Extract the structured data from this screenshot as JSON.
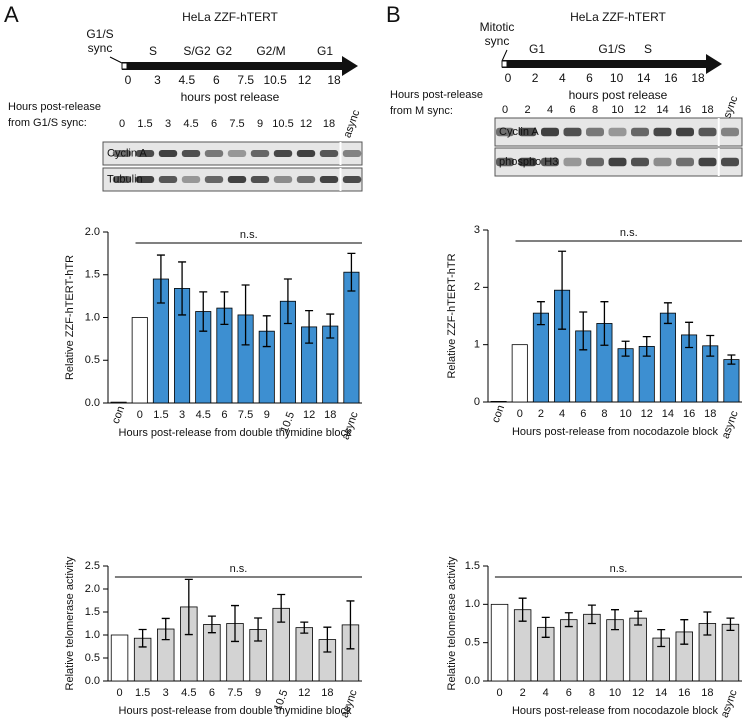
{
  "panels": [
    "A",
    "B"
  ],
  "timelines": [
    {
      "title": "HeLa ZZF-hTERT",
      "sync": [
        "G1/S",
        "sync"
      ],
      "phases": [
        "S",
        "S/G2",
        "G2",
        "G2/M",
        "G1"
      ],
      "ticks": [
        0,
        3,
        4.5,
        6,
        7.5,
        10.5,
        12,
        18
      ],
      "axis_label": "hours post release"
    },
    {
      "title": "HeLa ZZF-hTERT",
      "sync": [
        "Mitotic",
        "sync"
      ],
      "phases": [
        "G1",
        "G1/S",
        "S"
      ],
      "ticks": [
        0,
        2,
        4,
        6,
        10,
        14,
        16,
        18
      ],
      "axis_label": "hours post release"
    }
  ],
  "blots": [
    {
      "header": [
        "Hours post-release",
        "from G1/S sync:"
      ],
      "lanes": [
        "0",
        "1.5",
        "3",
        "4.5",
        "6",
        "7.5",
        "9",
        "10.5",
        "12",
        "18",
        "async"
      ],
      "rows": [
        "Cyclin A",
        "Tubulin"
      ]
    },
    {
      "header": [
        "Hours post-release",
        "from M sync:"
      ],
      "lanes": [
        "0",
        "2",
        "4",
        "6",
        "8",
        "10",
        "12",
        "14",
        "16",
        "18",
        "async"
      ],
      "rows": [
        "Cyclin A",
        "phospho H3"
      ]
    }
  ],
  "chart_data": [
    {
      "type": "bar",
      "xlabel": "Hours post-release from double thymidine block",
      "ylabel": "Relative ZZF-hTERT-hTR",
      "annotation": "n.s.",
      "categories": [
        "con",
        "0",
        "1.5",
        "3",
        "4.5",
        "6",
        "7.5",
        "9",
        "10.5",
        "12",
        "18",
        "async"
      ],
      "values": [
        0.01,
        1.0,
        1.45,
        1.34,
        1.07,
        1.11,
        1.03,
        0.84,
        1.19,
        0.89,
        0.9,
        1.53
      ],
      "errors": [
        null,
        null,
        0.28,
        0.31,
        0.23,
        0.19,
        0.35,
        0.18,
        0.26,
        0.19,
        0.14,
        0.22
      ],
      "colors": [
        "#ffffff",
        "#ffffff",
        "#3d8fd1",
        "#3d8fd1",
        "#3d8fd1",
        "#3d8fd1",
        "#3d8fd1",
        "#3d8fd1",
        "#3d8fd1",
        "#3d8fd1",
        "#3d8fd1",
        "#3d8fd1"
      ],
      "ylim": [
        0,
        2
      ],
      "yticks": [
        {
          "value": 0,
          "label": "0.0"
        },
        0.5,
        {
          "value": 1,
          "label": "1.0"
        },
        1.5,
        {
          "value": 2,
          "label": "2.0"
        }
      ]
    },
    {
      "type": "bar",
      "xlabel": "Hours post-release from nocodazole block",
      "ylabel": "Relative ZZF-hTERT-hTR",
      "annotation": "n.s.",
      "categories": [
        "con",
        "0",
        "2",
        "4",
        "6",
        "8",
        "10",
        "12",
        "14",
        "16",
        "18",
        "async"
      ],
      "values": [
        0.01,
        1.0,
        1.55,
        1.95,
        1.24,
        1.37,
        0.93,
        0.97,
        1.55,
        1.17,
        0.98,
        0.74
      ],
      "errors": [
        null,
        null,
        0.2,
        0.68,
        0.33,
        0.38,
        0.13,
        0.17,
        0.18,
        0.22,
        0.18,
        0.08
      ],
      "colors": [
        "#ffffff",
        "#ffffff",
        "#3d8fd1",
        "#3d8fd1",
        "#3d8fd1",
        "#3d8fd1",
        "#3d8fd1",
        "#3d8fd1",
        "#3d8fd1",
        "#3d8fd1",
        "#3d8fd1",
        "#3d8fd1"
      ],
      "ylim": [
        0,
        3
      ],
      "yticks": [
        0,
        1,
        2,
        3
      ]
    },
    {
      "type": "bar",
      "xlabel": "Hours post-release from double thymidine block",
      "ylabel": "Relative telomerase activity",
      "annotation": "n.s.",
      "categories": [
        "0",
        "1.5",
        "3",
        "4.5",
        "6",
        "7.5",
        "9",
        "10.5",
        "12",
        "18",
        "async"
      ],
      "values": [
        1.0,
        0.93,
        1.13,
        1.61,
        1.23,
        1.25,
        1.12,
        1.58,
        1.16,
        0.9,
        1.22
      ],
      "errors": [
        null,
        0.19,
        0.23,
        0.6,
        0.18,
        0.39,
        0.25,
        0.3,
        0.12,
        0.27,
        0.52
      ],
      "colors": [
        "#ffffff",
        "#d3d3d3",
        "#d3d3d3",
        "#d3d3d3",
        "#d3d3d3",
        "#d3d3d3",
        "#d3d3d3",
        "#d3d3d3",
        "#d3d3d3",
        "#d3d3d3",
        "#d3d3d3"
      ],
      "ylim": [
        0,
        2.5
      ],
      "yticks": [
        {
          "value": 0,
          "label": "0.0"
        },
        0.5,
        {
          "value": 1,
          "label": "1.0"
        },
        1.5,
        {
          "value": 2,
          "label": "2.0"
        },
        2.5
      ]
    },
    {
      "type": "bar",
      "xlabel": "Hours post-release from nocodazole block",
      "ylabel": "Relative telomerase activity",
      "annotation": "n.s.",
      "categories": [
        "0",
        "2",
        "4",
        "6",
        "8",
        "10",
        "12",
        "14",
        "16",
        "18",
        "async"
      ],
      "values": [
        1.0,
        0.93,
        0.7,
        0.8,
        0.87,
        0.8,
        0.82,
        0.56,
        0.64,
        0.75,
        0.74
      ],
      "errors": [
        null,
        0.15,
        0.13,
        0.09,
        0.12,
        0.13,
        0.09,
        0.11,
        0.16,
        0.15,
        0.08
      ],
      "colors": [
        "#ffffff",
        "#d3d3d3",
        "#d3d3d3",
        "#d3d3d3",
        "#d3d3d3",
        "#d3d3d3",
        "#d3d3d3",
        "#d3d3d3",
        "#d3d3d3",
        "#d3d3d3",
        "#d3d3d3"
      ],
      "ylim": [
        0,
        1.5
      ],
      "yticks": [
        {
          "value": 0,
          "label": "0.0"
        },
        0.5,
        {
          "value": 1,
          "label": "1.0"
        },
        1.5
      ]
    }
  ]
}
